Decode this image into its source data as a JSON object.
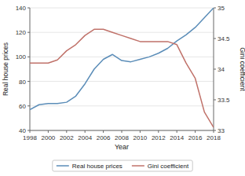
{
  "chart_data": {
    "type": "line",
    "x": [
      1998,
      1999,
      2000,
      2001,
      2002,
      2003,
      2004,
      2005,
      2006,
      2007,
      2008,
      2009,
      2010,
      2011,
      2012,
      2013,
      2014,
      2015,
      2016,
      2017,
      2018
    ],
    "xlabel": "Year",
    "ylabel": "Real house prices",
    "y2label": "Gini coefficient",
    "xlim": [
      1998,
      2018
    ],
    "xticks": [
      1998,
      2000,
      2002,
      2004,
      2006,
      2008,
      2010,
      2012,
      2014,
      2016,
      2018
    ],
    "ylim": [
      40,
      140
    ],
    "yticks": [
      40,
      60,
      80,
      100,
      120,
      140
    ],
    "y2lim": [
      33,
      35
    ],
    "y2ticks": [
      33,
      33.5,
      34,
      34.5,
      35
    ],
    "grid": true,
    "legend": "bottom",
    "series": [
      {
        "name": "Real house prices",
        "color": "#5b8db8",
        "values": [
          57,
          61,
          62,
          62,
          63,
          68,
          78,
          90,
          98,
          102,
          97,
          96,
          98,
          100,
          103,
          107,
          113,
          118,
          124,
          132,
          140
        ]
      },
      {
        "name": "Gini coefficient",
        "color": "#c0726a",
        "axis": "y2",
        "values": [
          34.1,
          34.1,
          34.1,
          34.15,
          34.3,
          34.4,
          34.55,
          34.65,
          34.65,
          34.6,
          34.55,
          34.5,
          34.45,
          34.45,
          34.45,
          34.45,
          34.4,
          34.1,
          33.85,
          33.3,
          33.05
        ]
      }
    ]
  }
}
